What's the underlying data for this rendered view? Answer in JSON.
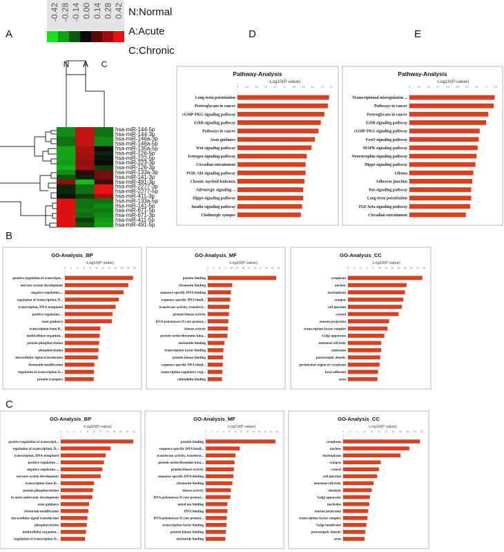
{
  "panel_labels": [
    "A",
    "B",
    "C",
    "D",
    "E"
  ],
  "legend": {
    "scale_values": [
      "-0.42",
      "-0.28",
      "-0.14",
      "0.00",
      "0.14",
      "0.28",
      "0.42"
    ],
    "scale_colors": [
      "#17e31b",
      "#0ea113",
      "#0c5a10",
      "#0a0a0a",
      "#5a0808",
      "#a00b0b",
      "#e81212"
    ],
    "groups": [
      "N:Normal",
      "A:Acute",
      "C:Chronic"
    ]
  },
  "chart_data": [
    {
      "id": "A",
      "type": "heatmap",
      "columns": [
        "N",
        "A",
        "C"
      ],
      "rows": [
        "hsa-miR-144-5p",
        "hsa-miR-144-3p",
        "hsa-miR-146a-3p",
        "hsa-miR-146a-5p",
        "hsa-miR-135a-5p",
        "hsa-miR-126-5p",
        "hsa-miR-122-5p",
        "hsa-miR-223-3p",
        "hsa-miR-126-3p",
        "hsa-miR-133a-3p",
        "hsa-miR-141-3p",
        "hsa-miR-491-3p",
        "hsa-miR-2277-3p",
        "hsa-miR-2277-5p",
        "hsa-miR-411-3p",
        "hsa-miR-133a-5p",
        "hsa-miR-141-5p",
        "hsa-miR-671-5p",
        "hsa-miR-671-3p",
        "hsa-miR-411-5p",
        "hsa-miR-491-5p"
      ],
      "values": [
        [
          -0.25,
          0.35,
          -0.2
        ],
        [
          -0.25,
          0.35,
          -0.2
        ],
        [
          -0.2,
          0.35,
          -0.25
        ],
        [
          -0.2,
          0.35,
          -0.25
        ],
        [
          -0.3,
          0.3,
          0.02
        ],
        [
          -0.3,
          0.3,
          -0.05
        ],
        [
          -0.3,
          0.28,
          -0.02
        ],
        [
          -0.28,
          0.25,
          0.0
        ],
        [
          -0.32,
          0.28,
          -0.1
        ],
        [
          -0.25,
          0.05,
          0.2
        ],
        [
          -0.15,
          -0.05,
          0.2
        ],
        [
          0.25,
          -0.35,
          0.1
        ],
        [
          -0.05,
          -0.2,
          0.42
        ],
        [
          -0.05,
          -0.2,
          0.42
        ],
        [
          -0.02,
          -0.1,
          0.3
        ],
        [
          0.4,
          -0.2,
          -0.2
        ],
        [
          0.4,
          -0.2,
          -0.25
        ],
        [
          0.4,
          -0.22,
          -0.22
        ],
        [
          0.4,
          -0.2,
          -0.25
        ],
        [
          0.4,
          -0.1,
          -0.28
        ],
        [
          0.4,
          -0.15,
          -0.3
        ]
      ]
    },
    {
      "id": "D",
      "type": "bar",
      "title": "Pathway-Analysis",
      "xlabel": "-Log10(P-value)",
      "ticks": [
        "0",
        "0.8",
        "1.6",
        "2.4",
        "3.2",
        "4",
        "4.8",
        "5.6",
        "6.4",
        "7.2",
        "8"
      ],
      "xmax": 8,
      "categories": [
        "Long-term potentiation",
        "Proteoglycans in cancer",
        "cGMP-PKG signaling pathway",
        "ErbB signaling pathway",
        "Pathways in cancer",
        "Axon guidance",
        "Wnt signaling pathway",
        "Estrogen signaling pathway",
        "Circadian entrainment",
        "PI3K-Akt signaling pathway",
        "Chronic myeloid leukemia",
        "Adrenergic signaling ...",
        "Hippo signaling pathway",
        "Insulin signaling pathway",
        "Cholinergic synapse"
      ],
      "values": [
        7.8,
        7.7,
        7.4,
        7.1,
        6.9,
        6.6,
        6.3,
        5.9,
        5.8,
        5.8,
        5.7,
        5.6,
        5.6,
        5.5,
        5.4
      ]
    },
    {
      "id": "E",
      "type": "bar",
      "title": "Pathway-Analysis",
      "xlabel": "-Log10(P-value)",
      "ticks": [
        "0",
        "0.9",
        "1.8",
        "2.7",
        "3.6",
        "4.5",
        "5.4",
        "6.3",
        "7.2",
        "8.1"
      ],
      "xmax": 8.1,
      "categories": [
        "Transcriptional misregulation ...",
        "Pathways in cancer",
        "Proteoglycans in cancer",
        "ErbB signaling pathway",
        "cGMP-PKG signaling pathway",
        "FoxO signaling pathway",
        "MAPK signaling pathway",
        "Neurotrophin signaling pathway",
        "Hippo signaling pathway",
        "Glioma",
        "Adherens junction",
        "Ras signaling pathway",
        "Long-term potentiation",
        "TGF-beta signaling pathway",
        "Circadian entrainment"
      ],
      "values": [
        8.0,
        7.9,
        7.4,
        7.2,
        6.6,
        6.5,
        6.4,
        6.3,
        6.2,
        6.0,
        5.9,
        5.8,
        5.8,
        5.7,
        5.3
      ]
    },
    {
      "id": "B-BP",
      "type": "bar",
      "title": "GO-Analysis_BP",
      "xlabel": "-Log10(P-value)",
      "ticks": [
        "0",
        "2",
        "4",
        "6",
        "8",
        "10",
        "12",
        "14",
        "16",
        "18",
        "20",
        "22"
      ],
      "xmax": 22,
      "categories": [
        "positive regulation of transcripti...",
        "nervous system development",
        "negative regulation ...",
        "regulation of transcription, D...",
        "transcription, DNA-templated",
        "positive regulation ...",
        "axon guidance",
        "transcription from R...",
        "multicellular organism...",
        "protein phosphorylation",
        "phosphorylation",
        "intracellular signal transduction",
        "chromatin modification",
        "regulation of transcription fr...",
        "protein transport"
      ],
      "values": [
        21.5,
        20.0,
        18.5,
        17.0,
        16.0,
        15.0,
        14.8,
        11.2,
        11.0,
        10.8,
        10.6,
        10.4,
        9.3,
        9.2,
        9.1
      ]
    },
    {
      "id": "B-MF",
      "type": "bar",
      "title": "GO-Analysis_MF",
      "xlabel": "-Log10(P-value)",
      "ticks": [
        "0",
        "3",
        "6",
        "9",
        "12",
        "15",
        "18",
        "21",
        "24",
        "27",
        "30",
        "33",
        "36"
      ],
      "xmax": 36,
      "categories": [
        "protein binding",
        "chromatin binding",
        "sequence-specific DNA binding",
        "sequence-specific DNA bindi...",
        "transferase activity, transferri...",
        "protein kinase activity",
        "RNA polymerase II core promot...",
        "kinase activity",
        "protein serine/threonine kina...",
        "nucleotide binding",
        "transcription factor binding",
        "protein kinase binding",
        "sequence-specific DNA bindi...",
        "transcription regulatory regi...",
        "calmodulin binding"
      ],
      "values": [
        35.0,
        12.5,
        11.8,
        11.5,
        11.0,
        10.8,
        10.5,
        10.3,
        10.0,
        8.5,
        8.0,
        7.8,
        7.6,
        7.4,
        7.2
      ]
    },
    {
      "id": "B-CC",
      "type": "bar",
      "title": "GO-Analysis_CC",
      "xlabel": "-Log10(P-value)",
      "ticks": [
        "0",
        "2",
        "4",
        "6",
        "8",
        "10",
        "12",
        "14",
        "16",
        "18",
        "20",
        "22",
        "24"
      ],
      "xmax": 24,
      "categories": [
        "cytoplasm",
        "nucleus",
        "nucleoplasm",
        "synapse",
        "cell junction",
        "cytosol",
        "neuron projection",
        "transcription factor complex",
        "Golgi apparatus",
        "neuronal cell body",
        "endosome",
        "postsynaptic density",
        "perinuclear region of cytoplasm",
        "focal adhesion",
        "axon"
      ],
      "values": [
        23.5,
        18.5,
        18.0,
        17.5,
        17.0,
        16.0,
        13.0,
        12.5,
        11.5,
        10.5,
        10.5,
        10.2,
        10.0,
        9.5,
        9.3
      ]
    },
    {
      "id": "C-BP",
      "type": "bar",
      "title": "GO-Analysis_BP",
      "xlabel": "-Log10(P-value)",
      "ticks": [
        "0",
        "2",
        "4",
        "6",
        "8",
        "10",
        "12",
        "14",
        "16",
        "18",
        "20",
        "22"
      ],
      "xmax": 22,
      "categories": [
        "positive regulation of transcripti...",
        "regulation of transcription, D...",
        "transcription, DNA-templated",
        "positive regulation ...",
        "negative regulation ...",
        "nervous system development",
        "transcription from R...",
        "protein phosphorylation",
        "in utero embryonic development",
        "axon guidance",
        "chromatin modification",
        "intracellular signal transduction",
        "phosphorylation",
        "multicellular organism...",
        "regulation of transcription fr..."
      ],
      "values": [
        21.8,
        15.0,
        13.5,
        13.0,
        12.5,
        12.0,
        10.0,
        9.7,
        9.5,
        8.5,
        8.3,
        8.0,
        7.8,
        7.6,
        7.3
      ]
    },
    {
      "id": "C-MF",
      "type": "bar",
      "title": "GO-Analysis_MF",
      "xlabel": "-Log10(P-value)",
      "ticks": [
        "0",
        "2",
        "4",
        "6",
        "8",
        "10",
        "12",
        "14",
        "16",
        "18",
        "20",
        "22",
        "24"
      ],
      "xmax": 24,
      "categories": [
        "protein binding",
        "sequence-specific DNA bindi...",
        "transferase activity, transferri...",
        "protein serine/threonine kina...",
        "protein kinase activity",
        "sequence-specific DNA binding",
        "chromatin binding",
        "kinase activity",
        "RNA polymerase II core promot...",
        "metal ion binding",
        "DNA binding",
        "RNA polymerase II core promot...",
        "transcription factor binding",
        "protein kinase binding",
        "nucleotide binding"
      ],
      "values": [
        23.5,
        11.5,
        10.0,
        9.7,
        9.5,
        9.3,
        9.0,
        8.5,
        8.3,
        7.3,
        7.3,
        7.1,
        7.0,
        6.8,
        6.6
      ]
    },
    {
      "id": "C-CC",
      "type": "bar",
      "title": "GO-Analysis_CC",
      "xlabel": "-Log10(P-value)",
      "ticks": [
        "0",
        "2",
        "4",
        "6",
        "8",
        "10",
        "12",
        "14",
        "16",
        "18",
        "20",
        "22"
      ],
      "xmax": 22,
      "categories": [
        "cytoplasm",
        "nucleus",
        "nucleoplasm",
        "synapse",
        "cytosol",
        "cell junction",
        "neuronal cell body",
        "dendrite",
        "Golgi apparatus",
        "nucleolus",
        "neuron projection",
        "transcription factor complex",
        "Golgi membrane",
        "postsynaptic density",
        "axon"
      ],
      "values": [
        21.5,
        18.5,
        16.0,
        10.5,
        10.0,
        9.5,
        8.5,
        8.0,
        7.5,
        7.3,
        7.0,
        6.8,
        6.5,
        6.2,
        6.0
      ]
    }
  ]
}
